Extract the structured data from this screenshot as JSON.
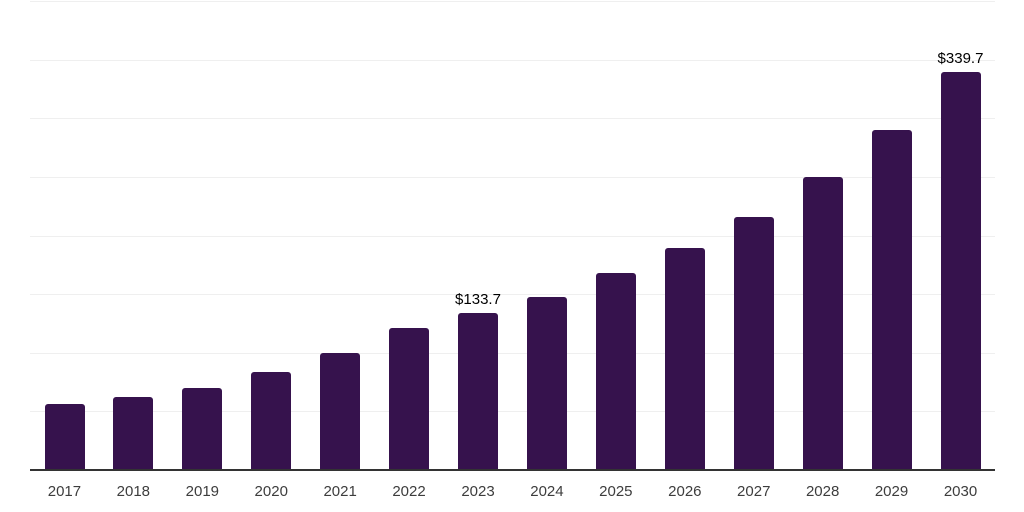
{
  "chart_data": {
    "type": "bar",
    "title": "",
    "xlabel": "",
    "ylabel": "",
    "categories": [
      "2017",
      "2018",
      "2019",
      "2020",
      "2021",
      "2022",
      "2023",
      "2024",
      "2025",
      "2026",
      "2027",
      "2028",
      "2029",
      "2030"
    ],
    "values": [
      56,
      62,
      70,
      84,
      100,
      121,
      133.7,
      148,
      168,
      189,
      216,
      250,
      290,
      339.7
    ],
    "data_labels": {
      "2023": "$133.7",
      "2030": "$339.7"
    },
    "ylim": [
      0,
      400
    ],
    "grid": true,
    "grid_step": 50,
    "y_axis_labels_visible": false,
    "legend": false
  },
  "colors": {
    "bar": "#36124d",
    "axis": "#333333",
    "gridline": "#efefef",
    "tick_label": "#3d3d3d",
    "data_label": "#000000",
    "background": "#ffffff"
  }
}
